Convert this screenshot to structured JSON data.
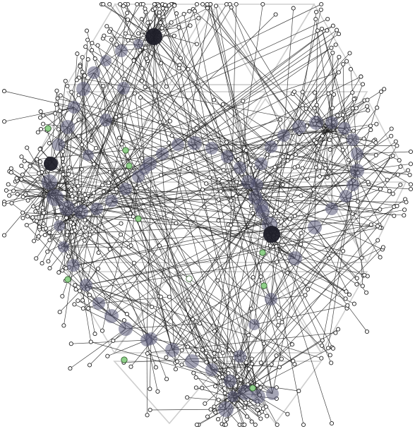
{
  "diagram": {
    "type": "node-link graph on triangular grid",
    "colors": {
      "background": "#ffffff",
      "grid": "#cfcfcf",
      "edge": "#222222",
      "hub": "#5a5a78",
      "hub_dark": "#1e1e28",
      "accent": "#8fd08a"
    },
    "hub_count_large_curve": 60,
    "leaf_nodes_approx": 420,
    "accent_nodes": 10
  }
}
